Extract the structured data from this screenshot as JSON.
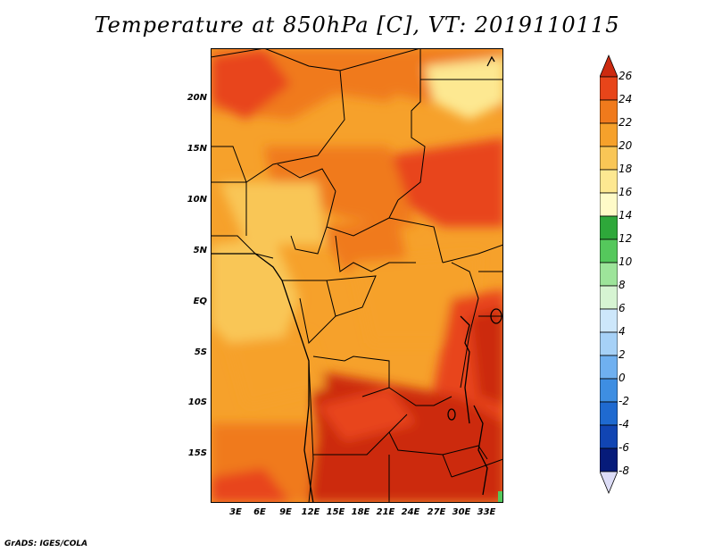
{
  "title": "Temperature at 850hPa [C], VT: 2019110115",
  "map": {
    "lat_ticks": [
      "20N",
      "15N",
      "10N",
      "5N",
      "EQ",
      "5S",
      "10S",
      "15S"
    ],
    "lon_ticks": [
      "3E",
      "6E",
      "9E",
      "12E",
      "15E",
      "18E",
      "21E",
      "24E",
      "27E",
      "30E",
      "33E"
    ]
  },
  "colorbar": {
    "labels": [
      "26",
      "24",
      "22",
      "20",
      "18",
      "16",
      "14",
      "12",
      "10",
      "8",
      "6",
      "4",
      "2",
      "0",
      "-2",
      "-4",
      "-6",
      "-8"
    ],
    "colors": {
      "26": "#cc2a10",
      "24": "#e8451a",
      "22": "#f07a1c",
      "20": "#f6a12b",
      "18": "#f9c656",
      "16": "#fde891",
      "14": "#fffbc8",
      "12": "#2ea83a",
      "10": "#55c85c",
      "8": "#9de49a",
      "6": "#d6f4d2",
      "4": "#cde7fb",
      "2": "#a6d1f7",
      "0": "#6fb0f0",
      "-2": "#3e8ee2",
      "-4": "#1f6ad0",
      "-6": "#1145b3",
      "-8": "#061b7a"
    }
  },
  "credit": "GrADS: IGES/COLA"
}
